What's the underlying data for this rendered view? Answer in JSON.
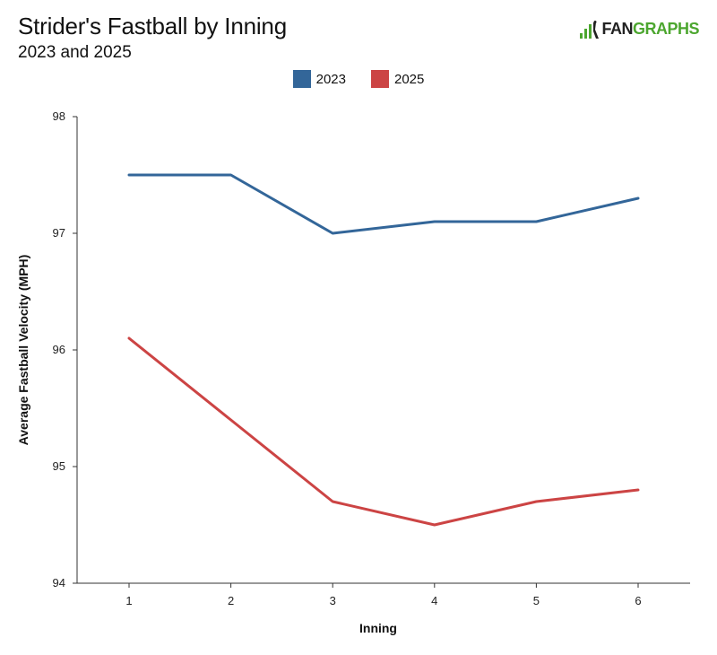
{
  "header": {
    "title": "Strider's Fastball by Inning",
    "subtitle": "2023 and 2025",
    "logo_fan": "FAN",
    "logo_graphs": "GRAPHS"
  },
  "colors": {
    "s2023": "#336699",
    "s2025": "#cc4444",
    "brand_green": "#4ca62f"
  },
  "chart_data": {
    "type": "line",
    "title": "Strider's Fastball by Inning",
    "subtitle": "2023 and 2025",
    "xlabel": "Inning",
    "ylabel": "Average Fastball Velocity (MPH)",
    "x": [
      1,
      2,
      3,
      4,
      5,
      6
    ],
    "ylim": [
      94,
      98
    ],
    "yticks": [
      94,
      95,
      96,
      97,
      98
    ],
    "legend_position": "top-center",
    "grid": false,
    "series": [
      {
        "name": "2023",
        "color": "#336699",
        "values": [
          97.5,
          97.5,
          97.0,
          97.1,
          97.1,
          97.3
        ]
      },
      {
        "name": "2025",
        "color": "#cc4444",
        "values": [
          96.1,
          95.4,
          94.7,
          94.5,
          94.7,
          94.8
        ]
      }
    ]
  }
}
